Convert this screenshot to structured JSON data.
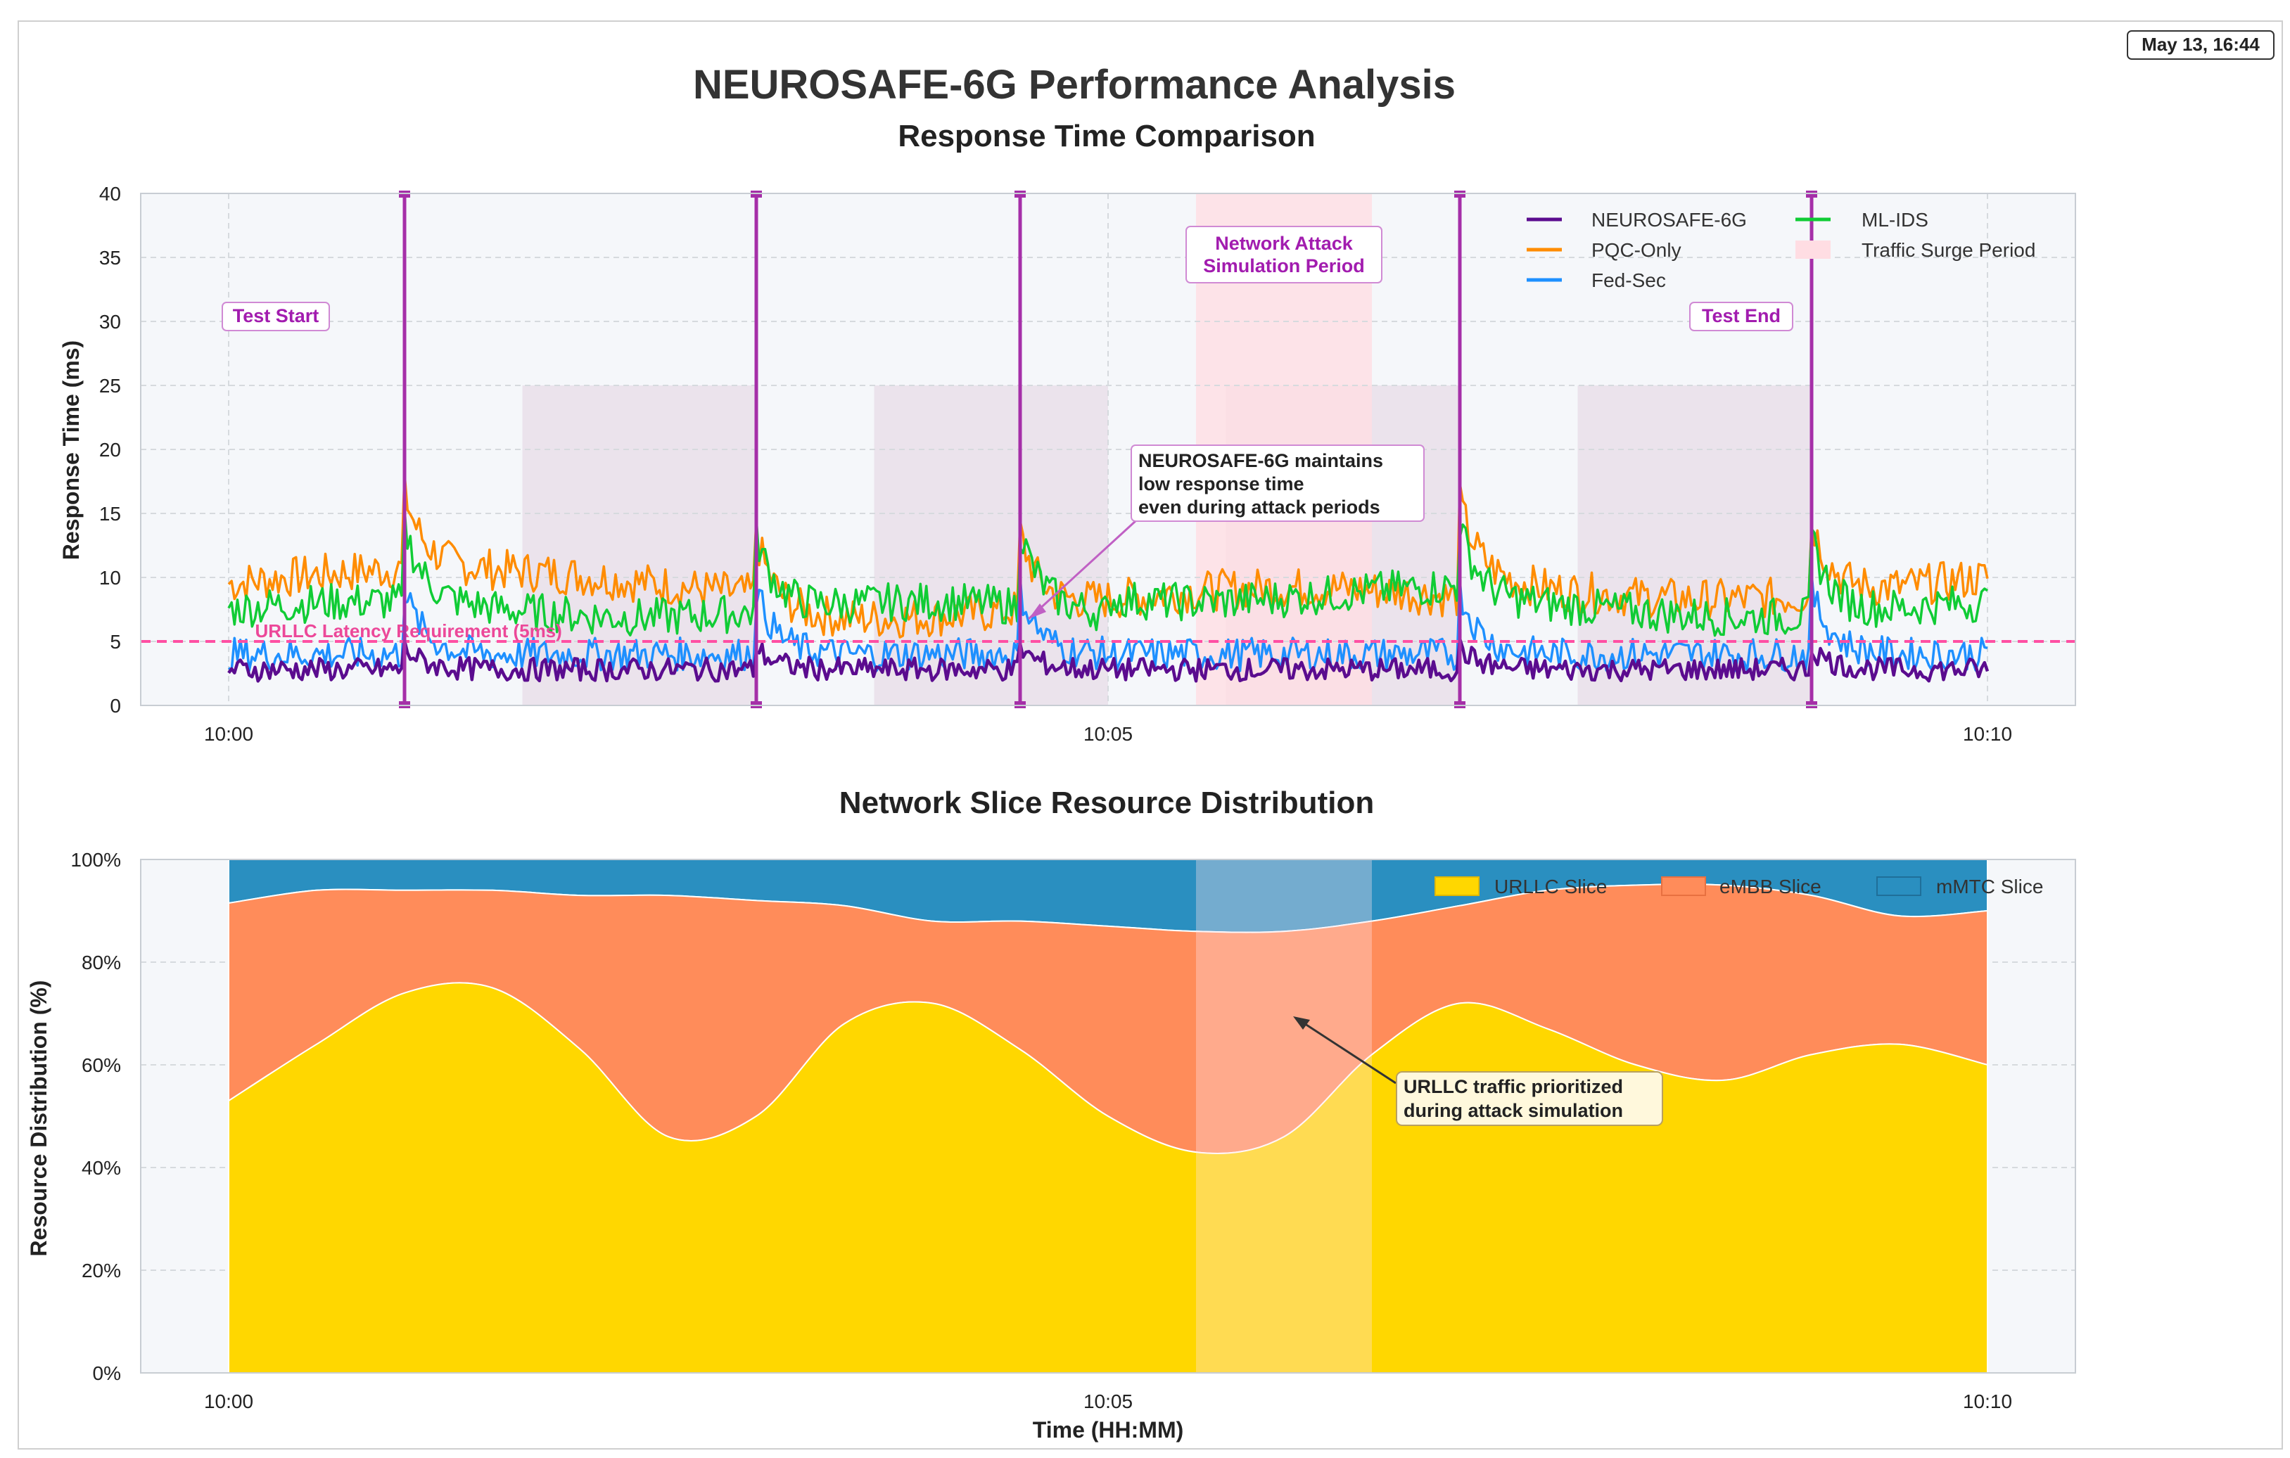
{
  "timestamp_badge": "May 13, 16:44",
  "page": {
    "title": "NEUROSAFE-6G Performance Analysis",
    "subtitle": "Response Time Comparison"
  },
  "colors": {
    "neurosafe": "#5b0c8f",
    "pqc": "#ff8c00",
    "fedsec": "#1e90ff",
    "mlids": "#10cc35",
    "event": "#a52fa8",
    "urllc_req": "#ff4fa3",
    "urllc": "#ffd700",
    "embb": "#ff8c5a",
    "mmtc": "#2a8fc0",
    "attack": "#ffdde3",
    "surge": "#e9dde9"
  },
  "chart_data": [
    {
      "type": "line",
      "title": "Response Time Comparison",
      "xlabel": "",
      "ylabel": "Response Time (ms)",
      "x_ticks": [
        "10:00",
        "10:05",
        "10:10"
      ],
      "x_range_minutes": [
        -0.5,
        10.5
      ],
      "ylim": [
        0,
        40
      ],
      "y_ticks": [
        0,
        5,
        10,
        15,
        20,
        25,
        30,
        35,
        40
      ],
      "grid": true,
      "legend_position": "top-right",
      "series": [
        {
          "name": "NEUROSAFE-6G",
          "baseline_ms": 2.8,
          "noise": 0.9
        },
        {
          "name": "PQC-Only",
          "baseline_ms": 9.5,
          "noise": 1.6
        },
        {
          "name": "Fed-Sec",
          "baseline_ms": 4.0,
          "noise": 1.3
        },
        {
          "name": "ML-IDS",
          "baseline_ms": 7.5,
          "noise": 1.5
        }
      ],
      "event_markers_minutes": [
        1.0,
        3.0,
        4.5,
        7.0,
        9.0
      ],
      "spike_ms": {
        "NEUROSAFE-6G": 4.5,
        "PQC-Only": 15.5,
        "Fed-Sec": 9.0,
        "ML-IDS": 13.5
      },
      "traffic_surge_periods_minutes": [
        [
          1.67,
          3.0
        ],
        [
          3.67,
          5.0
        ],
        [
          5.67,
          7.0
        ],
        [
          7.67,
          9.0
        ]
      ],
      "surge_band_ms": [
        0,
        25
      ],
      "attack_period_minutes": [
        5.5,
        6.5
      ],
      "reference_line": {
        "value": 5,
        "label": "URLLC Latency Requirement (5ms)"
      },
      "annotations": {
        "test_start": "Test Start",
        "test_end": "Test End",
        "attack": [
          "Network Attack",
          "Simulation Period"
        ],
        "neurosafe_note": [
          "NEUROSAFE-6G maintains",
          "low response time",
          "even during attack periods"
        ]
      },
      "legend": [
        "NEUROSAFE-6G",
        "ML-IDS",
        "PQC-Only",
        "Traffic Surge Period",
        "Fed-Sec"
      ]
    },
    {
      "type": "area",
      "title": "Network Slice Resource Distribution",
      "xlabel": "Time (HH:MM)",
      "ylabel": "Resource Distribution (%)",
      "x_ticks": [
        "10:00",
        "10:05",
        "10:10"
      ],
      "x_range_minutes": [
        -0.5,
        10.5
      ],
      "ylim": [
        0,
        100
      ],
      "y_ticks": [
        "0%",
        "20%",
        "40%",
        "60%",
        "80%",
        "100%"
      ],
      "stacked": true,
      "legend_position": "top-right",
      "x_minutes": [
        0,
        0.5,
        1,
        1.5,
        2,
        2.5,
        3,
        3.5,
        4,
        4.5,
        5,
        5.5,
        6,
        6.5,
        7,
        7.5,
        8,
        8.5,
        9,
        9.5,
        10
      ],
      "series": [
        {
          "name": "URLLC Slice",
          "values": [
            53,
            64,
            74,
            75,
            63,
            46,
            50,
            68,
            72,
            63,
            50,
            43,
            46,
            62,
            72,
            67,
            60,
            57,
            62,
            64,
            60
          ]
        },
        {
          "name": "eMBB Slice",
          "values": [
            38.5,
            30,
            20,
            19,
            30,
            47,
            42,
            23,
            16,
            25,
            37,
            43,
            40,
            26,
            19,
            27,
            35,
            38,
            31,
            25,
            30
          ]
        },
        {
          "name": "mMTC Slice",
          "values": [
            8.5,
            6,
            6,
            6,
            7,
            7,
            8,
            9,
            12,
            12,
            13,
            14,
            14,
            12,
            9,
            6,
            5,
            5,
            7,
            11,
            10
          ]
        }
      ],
      "highlight_period_minutes": [
        5.5,
        6.5
      ],
      "annotation": [
        "URLLC traffic prioritized",
        "during attack simulation"
      ]
    }
  ]
}
